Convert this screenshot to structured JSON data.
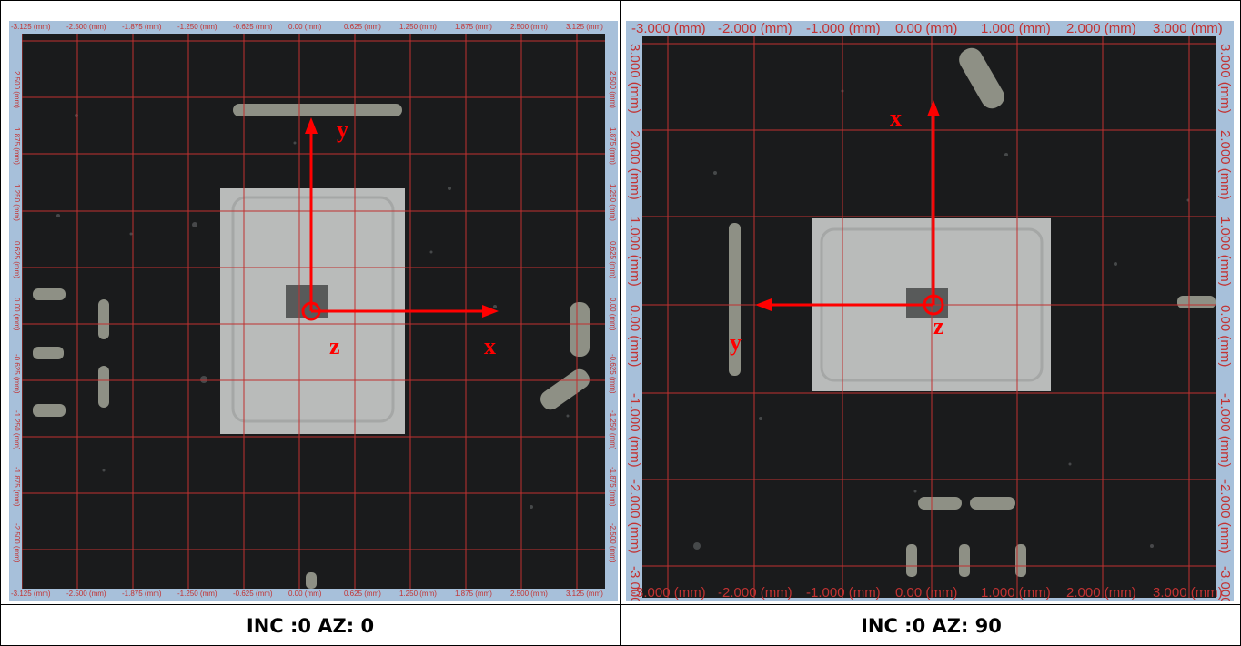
{
  "panels": [
    {
      "caption": "INC :0 AZ: 0",
      "x_ticks": [
        "-3.125 (mm)",
        "-2.500 (mm)",
        "-1.875 (mm)",
        "-1.250 (mm)",
        "-0.625 (mm)",
        "0.00 (mm)",
        "0.625 (mm)",
        "1.250 (mm)",
        "1.875 (mm)",
        "2.500 (mm)",
        "3.125 (mm)"
      ],
      "y_ticks": [
        "2.500 (mm)",
        "1.875 (mm)",
        "1.250 (mm)",
        "0.625 (mm)",
        "0.00 (mm)",
        "-0.625 (mm)",
        "-1.250 (mm)",
        "-1.875 (mm)",
        "-2.500 (mm)"
      ],
      "axis_labels": {
        "vertical": "y",
        "horizontal": "x",
        "origin": "z"
      }
    },
    {
      "caption": "INC :0 AZ: 90",
      "x_ticks": [
        "-3.000 (mm)",
        "-2.000 (mm)",
        "-1.000 (mm)",
        "0.00 (mm)",
        "1.000 (mm)",
        "2.000 (mm)",
        "3.000 (mm)"
      ],
      "y_ticks": [
        "3.000 (mm)",
        "2.000 (mm)",
        "1.000 (mm)",
        "0.00 (mm)",
        "-1.000 (mm)",
        "-2.000 (mm)",
        "-3.000 (mm)"
      ],
      "axis_labels": {
        "vertical": "x",
        "horizontal": "y",
        "origin": "z"
      }
    }
  ],
  "colors": {
    "grid": "#c03030",
    "axis": "#ff0000",
    "ruler_bg": "#a7c0da",
    "tick_text": "#c23232",
    "image_bg": "#1a1b1c",
    "chip": "#b9bbba"
  }
}
